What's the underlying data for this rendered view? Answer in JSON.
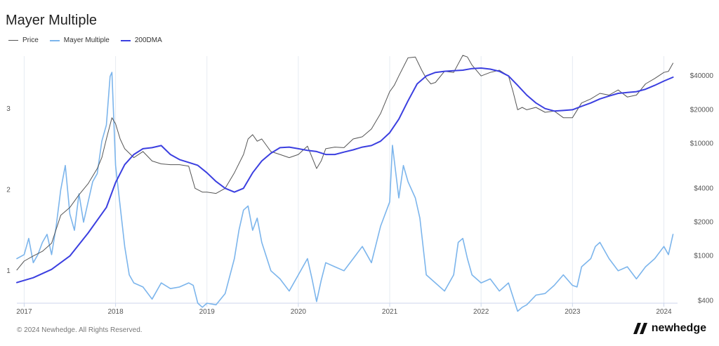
{
  "title": "Mayer Multiple",
  "legend": {
    "price": "Price",
    "mayer": "Mayer Multiple",
    "dma": "200DMA"
  },
  "footer": "© 2024 Newhedge. All Rights Reserved.",
  "brand": "newhedge",
  "colors": {
    "price": "#555555",
    "mayer": "#7cb5ec",
    "dma": "#3b3fe0",
    "grid": "#e6ebf2"
  },
  "chart_data": {
    "type": "line",
    "x_range": [
      2016.92,
      2024.15
    ],
    "x_ticks": [
      2017,
      2018,
      2019,
      2020,
      2021,
      2022,
      2023,
      2024
    ],
    "x_tick_labels": [
      "2017",
      "2018",
      "2019",
      "2020",
      "2021",
      "2022",
      "2023",
      "2024"
    ],
    "left_axis": {
      "range": [
        0.6,
        3.65
      ],
      "ticks": [
        1,
        2,
        3
      ],
      "tick_labels": [
        "1",
        "2",
        "3"
      ]
    },
    "right_axis": {
      "scale": "log",
      "range": [
        380,
        60000
      ],
      "ticks": [
        400,
        1000,
        2000,
        4000,
        10000,
        20000,
        40000
      ],
      "tick_labels": [
        "$400",
        "$1000",
        "$2000",
        "$4000",
        "$10000",
        "$20000",
        "$40000"
      ]
    },
    "series": [
      {
        "name": "Price",
        "axis": "right",
        "color": "#555555",
        "x": [
          2016.92,
          2017.0,
          2017.1,
          2017.2,
          2017.3,
          2017.4,
          2017.5,
          2017.6,
          2017.7,
          2017.8,
          2017.85,
          2017.9,
          2017.96,
          2018.0,
          2018.05,
          2018.1,
          2018.2,
          2018.3,
          2018.4,
          2018.5,
          2018.6,
          2018.7,
          2018.8,
          2018.87,
          2018.95,
          2019.0,
          2019.1,
          2019.2,
          2019.3,
          2019.4,
          2019.45,
          2019.5,
          2019.55,
          2019.6,
          2019.7,
          2019.8,
          2019.9,
          2020.0,
          2020.1,
          2020.2,
          2020.25,
          2020.3,
          2020.4,
          2020.5,
          2020.6,
          2020.7,
          2020.8,
          2020.9,
          2021.0,
          2021.05,
          2021.1,
          2021.2,
          2021.28,
          2021.35,
          2021.4,
          2021.45,
          2021.5,
          2021.6,
          2021.7,
          2021.8,
          2021.85,
          2021.9,
          2022.0,
          2022.1,
          2022.2,
          2022.3,
          2022.35,
          2022.4,
          2022.45,
          2022.5,
          2022.6,
          2022.7,
          2022.8,
          2022.9,
          2023.0,
          2023.1,
          2023.2,
          2023.3,
          2023.4,
          2023.5,
          2023.6,
          2023.7,
          2023.8,
          2023.9,
          2024.0,
          2024.05,
          2024.1
        ],
        "values": [
          750,
          900,
          1000,
          1100,
          1300,
          2300,
          2700,
          3500,
          4400,
          6000,
          7500,
          11000,
          17000,
          15000,
          11000,
          9000,
          7500,
          8500,
          7000,
          6600,
          6500,
          6500,
          6300,
          4000,
          3700,
          3700,
          3600,
          4000,
          5500,
          8000,
          11000,
          12000,
          10500,
          11000,
          8500,
          8000,
          7500,
          8000,
          9500,
          6000,
          7000,
          9000,
          9300,
          9200,
          11000,
          11500,
          13500,
          18500,
          29000,
          33000,
          40000,
          58000,
          59000,
          45000,
          38000,
          34000,
          35000,
          44000,
          43000,
          61000,
          59000,
          50000,
          40000,
          43000,
          45000,
          40000,
          29000,
          20000,
          21000,
          20000,
          21000,
          19000,
          19500,
          17000,
          17000,
          23000,
          25000,
          28000,
          27000,
          30000,
          26000,
          27000,
          34000,
          38000,
          43000,
          44000,
          52000
        ]
      },
      {
        "name": "Mayer Multiple",
        "axis": "left",
        "color": "#7cb5ec",
        "x": [
          2016.92,
          2017.0,
          2017.05,
          2017.1,
          2017.15,
          2017.2,
          2017.25,
          2017.3,
          2017.35,
          2017.4,
          2017.45,
          2017.5,
          2017.55,
          2017.6,
          2017.65,
          2017.7,
          2017.75,
          2017.8,
          2017.85,
          2017.9,
          2017.94,
          2017.96,
          2018.0,
          2018.05,
          2018.1,
          2018.15,
          2018.2,
          2018.3,
          2018.4,
          2018.5,
          2018.6,
          2018.7,
          2018.8,
          2018.85,
          2018.9,
          2018.95,
          2019.0,
          2019.1,
          2019.2,
          2019.3,
          2019.35,
          2019.4,
          2019.45,
          2019.5,
          2019.55,
          2019.6,
          2019.7,
          2019.8,
          2019.9,
          2020.0,
          2020.1,
          2020.15,
          2020.2,
          2020.25,
          2020.3,
          2020.4,
          2020.5,
          2020.6,
          2020.7,
          2020.8,
          2020.9,
          2021.0,
          2021.03,
          2021.1,
          2021.15,
          2021.2,
          2021.28,
          2021.33,
          2021.4,
          2021.5,
          2021.6,
          2021.7,
          2021.75,
          2021.8,
          2021.85,
          2021.9,
          2022.0,
          2022.1,
          2022.2,
          2022.3,
          2022.4,
          2022.45,
          2022.5,
          2022.6,
          2022.7,
          2022.8,
          2022.9,
          2023.0,
          2023.05,
          2023.1,
          2023.2,
          2023.25,
          2023.3,
          2023.4,
          2023.5,
          2023.6,
          2023.7,
          2023.8,
          2023.9,
          2024.0,
          2024.05,
          2024.1
        ],
        "values": [
          1.15,
          1.2,
          1.4,
          1.1,
          1.2,
          1.35,
          1.45,
          1.2,
          1.55,
          2.0,
          2.3,
          1.7,
          1.5,
          1.95,
          1.6,
          1.85,
          2.1,
          2.2,
          2.6,
          2.8,
          3.4,
          3.45,
          2.3,
          1.8,
          1.3,
          0.95,
          0.85,
          0.8,
          0.65,
          0.85,
          0.78,
          0.8,
          0.85,
          0.82,
          0.6,
          0.55,
          0.6,
          0.58,
          0.72,
          1.15,
          1.5,
          1.75,
          1.8,
          1.5,
          1.65,
          1.35,
          1.0,
          0.9,
          0.75,
          0.95,
          1.15,
          0.9,
          0.62,
          0.88,
          1.1,
          1.05,
          1.0,
          1.15,
          1.3,
          1.1,
          1.55,
          1.85,
          2.55,
          1.9,
          2.3,
          2.1,
          1.9,
          1.65,
          0.95,
          0.85,
          0.75,
          0.95,
          1.35,
          1.4,
          1.15,
          0.95,
          0.85,
          0.9,
          0.75,
          0.85,
          0.5,
          0.55,
          0.58,
          0.7,
          0.72,
          0.82,
          0.95,
          0.82,
          0.8,
          1.05,
          1.15,
          1.3,
          1.35,
          1.15,
          1.0,
          1.05,
          0.9,
          1.05,
          1.15,
          1.3,
          1.2,
          1.45
        ]
      },
      {
        "name": "200DMA",
        "axis": "right",
        "color": "#3b3fe0",
        "x": [
          2016.92,
          2017.1,
          2017.3,
          2017.5,
          2017.7,
          2017.9,
          2018.0,
          2018.1,
          2018.2,
          2018.3,
          2018.4,
          2018.5,
          2018.6,
          2018.7,
          2018.8,
          2018.9,
          2019.0,
          2019.1,
          2019.2,
          2019.3,
          2019.4,
          2019.5,
          2019.6,
          2019.7,
          2019.8,
          2019.9,
          2020.0,
          2020.1,
          2020.2,
          2020.3,
          2020.4,
          2020.5,
          2020.6,
          2020.7,
          2020.8,
          2020.9,
          2021.0,
          2021.1,
          2021.2,
          2021.3,
          2021.4,
          2021.5,
          2021.6,
          2021.7,
          2021.8,
          2021.9,
          2022.0,
          2022.1,
          2022.2,
          2022.3,
          2022.4,
          2022.5,
          2022.6,
          2022.7,
          2022.8,
          2022.9,
          2023.0,
          2023.1,
          2023.2,
          2023.3,
          2023.4,
          2023.5,
          2023.6,
          2023.7,
          2023.8,
          2023.9,
          2024.0,
          2024.1
        ],
        "values": [
          580,
          640,
          760,
          1000,
          1600,
          2700,
          4500,
          6500,
          8000,
          9000,
          9200,
          9600,
          8000,
          7200,
          6800,
          6400,
          5500,
          4600,
          4000,
          3700,
          4000,
          5500,
          7000,
          8200,
          9200,
          9300,
          9000,
          8700,
          8500,
          8000,
          8000,
          8400,
          8800,
          9300,
          9600,
          10500,
          12500,
          16500,
          24000,
          34000,
          40000,
          43000,
          44000,
          44500,
          45000,
          46500,
          47000,
          46000,
          44000,
          40000,
          33000,
          27000,
          23000,
          20500,
          19500,
          19700,
          20000,
          21500,
          23000,
          25000,
          26500,
          28000,
          28500,
          29000,
          30500,
          33000,
          36000,
          39000
        ]
      }
    ]
  }
}
